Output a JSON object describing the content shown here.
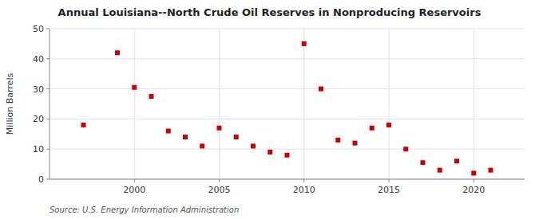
{
  "chart_data": {
    "type": "scatter",
    "title": "Annual Louisiana--North Crude Oil Reserves in Nonproducing Reservoirs",
    "ylabel": "Million Barrels",
    "source": "Source: U.S. Energy Information Administration",
    "x": [
      1997,
      1999,
      2000,
      2001,
      2002,
      2003,
      2004,
      2005,
      2006,
      2007,
      2008,
      2009,
      2010,
      2011,
      2012,
      2013,
      2014,
      2015,
      2016,
      2017,
      2018,
      2019,
      2020,
      2021
    ],
    "values": [
      18.0,
      42.0,
      30.5,
      27.5,
      16.0,
      14.0,
      11.0,
      17.0,
      14.0,
      11.0,
      9.0,
      8.0,
      45.0,
      30.0,
      13.0,
      12.0,
      17.0,
      18.0,
      10.0,
      5.5,
      3.0,
      6.0,
      2.0,
      3.0
    ],
    "color": "#cc0000",
    "marker": "square",
    "xlim": [
      1995,
      2023
    ],
    "ylim": [
      0,
      50
    ],
    "xticks": [
      2000,
      2005,
      2010,
      2015,
      2020
    ],
    "yticks": [
      0,
      10,
      20,
      30,
      40,
      50
    ],
    "grid": true
  }
}
